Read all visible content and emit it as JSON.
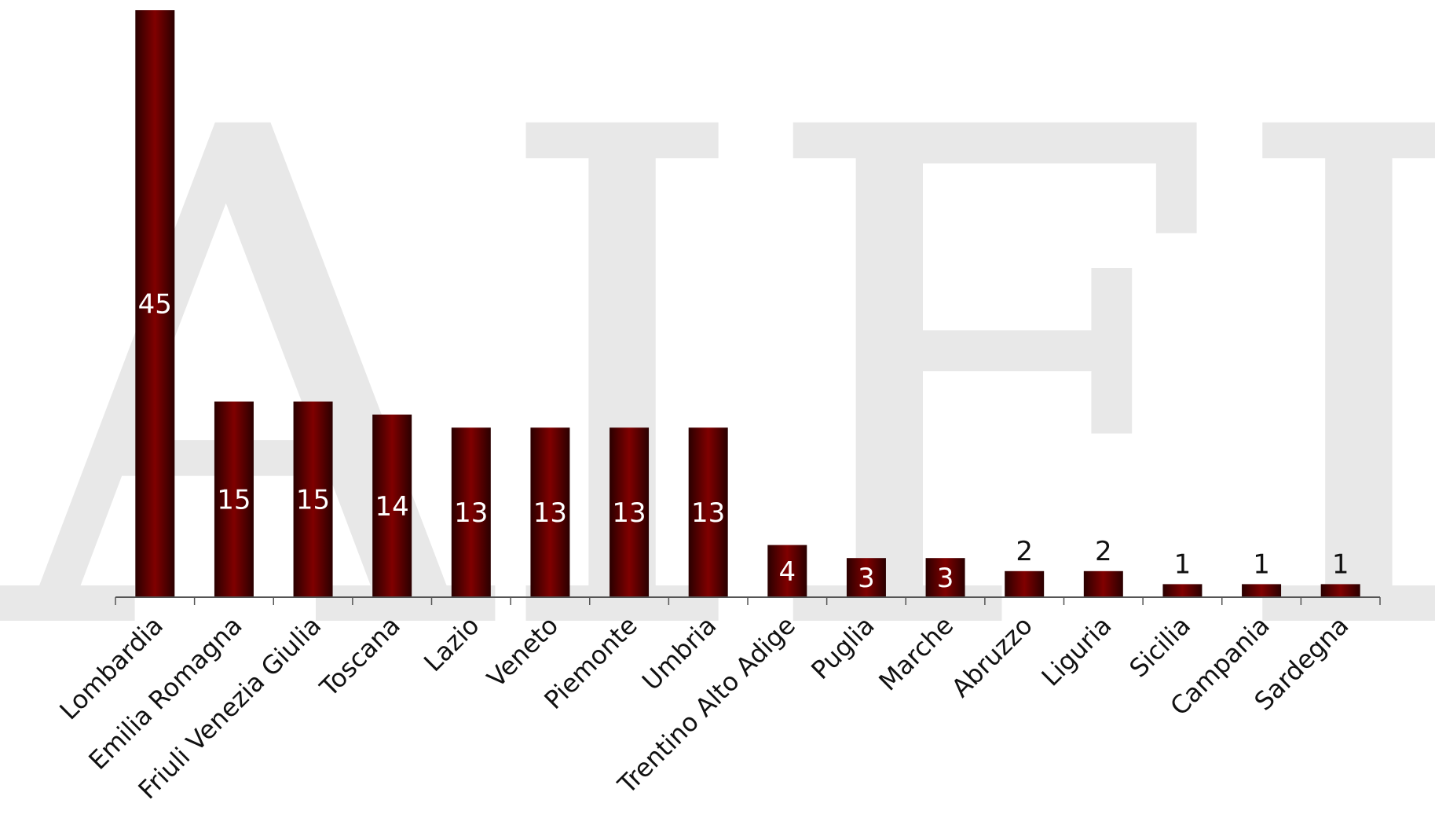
{
  "watermark": {
    "text": "AIFI",
    "color": "#e8e8e8"
  },
  "chart_data": {
    "type": "bar",
    "categories": [
      "Lombardia",
      "Emilia Romagna",
      "Friuli Venezia Giulia",
      "Toscana",
      "Lazio",
      "Veneto",
      "Piemonte",
      "Umbria",
      "Trentino Alto Adige",
      "Puglia",
      "Marche",
      "Abruzzo",
      "Liguria",
      "Sicilia",
      "Campania",
      "Sardegna"
    ],
    "values": [
      45,
      15,
      15,
      14,
      13,
      13,
      13,
      13,
      4,
      3,
      3,
      2,
      2,
      1,
      1,
      1
    ],
    "title": "",
    "xlabel": "",
    "ylabel": "",
    "ylim": [
      0,
      45
    ],
    "grid": false,
    "legend": "none",
    "bar_color": "#7a0000",
    "bar_shade_color": "#3a0000",
    "label_inside_color": "#ffffff",
    "label_outside_color": "#111111"
  }
}
